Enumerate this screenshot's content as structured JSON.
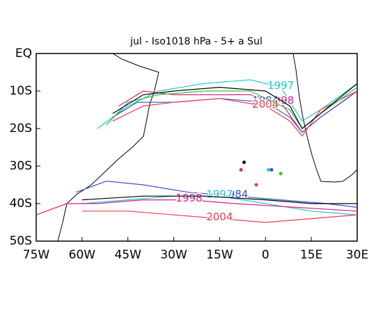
{
  "chart_data": {
    "type": "line",
    "title": "jul - Iso1018 hPa - 5+ a Sul",
    "xlim": [
      -75,
      30
    ],
    "ylim": [
      -50,
      0
    ],
    "xticks": [
      {
        "value": -75,
        "label": "75W"
      },
      {
        "value": -60,
        "label": "60W"
      },
      {
        "value": -45,
        "label": "45W"
      },
      {
        "value": -30,
        "label": "30W"
      },
      {
        "value": -15,
        "label": "15W"
      },
      0,
      {
        "value": 15,
        "label": "15E"
      },
      {
        "value": 30,
        "label": "30E"
      }
    ],
    "yticks": [
      {
        "value": 0,
        "label": "EQ"
      },
      {
        "value": -10,
        "label": "10S"
      },
      {
        "value": -20,
        "label": "20S"
      },
      {
        "value": -30,
        "label": "30S"
      },
      {
        "value": -40,
        "label": "40S"
      },
      {
        "value": -50,
        "label": "50S"
      }
    ],
    "series": [
      {
        "name": "1997",
        "color": "#19c8c8",
        "x": [
          -55,
          -45,
          -35,
          -20,
          -5,
          5,
          12,
          18,
          25,
          30
        ],
        "values": [
          -20,
          -14,
          -10,
          -8,
          -7,
          -9,
          -18,
          -15,
          -11,
          -8
        ]
      },
      {
        "name": "1998",
        "color": "#d81f8a",
        "x": [
          -48,
          -40,
          -30,
          -20,
          -5,
          5,
          12,
          18,
          25,
          30
        ],
        "values": [
          -14,
          -10,
          -11,
          -11,
          -11,
          -13,
          -21,
          -17,
          -13,
          -10
        ]
      },
      {
        "name": "1984",
        "color": "#3b4fd8",
        "x": [
          -50,
          -42,
          -30,
          -15,
          0,
          8,
          12,
          18,
          30
        ],
        "values": [
          -17,
          -13,
          -13,
          -12,
          -13,
          -17,
          -21,
          -17,
          -10
        ]
      },
      {
        "name": "2004",
        "color": "#f0384a",
        "x": [
          -50,
          -40,
          -30,
          -15,
          0,
          8,
          12,
          18,
          30
        ],
        "values": [
          -18,
          -14,
          -13,
          -12,
          -14,
          -18,
          -22,
          -15,
          -10
        ]
      },
      {
        "color": "#2cc82c",
        "x": [
          -52,
          -45,
          -35,
          -20,
          -5,
          8,
          12,
          18,
          30
        ],
        "values": [
          -19,
          -13,
          -11,
          -10,
          -10,
          -15,
          -20,
          -16,
          -9
        ]
      },
      {
        "color": "#000000",
        "x": [
          -50,
          -40,
          -30,
          -15,
          0,
          8,
          12,
          18,
          30
        ],
        "values": [
          -16,
          -11,
          -10,
          -9,
          -10,
          -14,
          -20,
          -16,
          -8
        ]
      },
      {
        "name": "1984",
        "color": "#3b4fd8",
        "x": [
          -62,
          -52,
          -40,
          -25,
          -10,
          5,
          20,
          30
        ],
        "values": [
          -37,
          -34,
          -35,
          -37,
          -38,
          -39,
          -40,
          -41
        ]
      },
      {
        "name": "1997",
        "color": "#19c8c8",
        "x": [
          -60,
          -45,
          -30,
          -15,
          0,
          15,
          30
        ],
        "values": [
          -40,
          -39,
          -38,
          -38,
          -40,
          -42,
          -43
        ]
      },
      {
        "name": "2004",
        "color": "#f0384a",
        "x": [
          -60,
          -45,
          -30,
          -15,
          0,
          15,
          30
        ],
        "values": [
          -42,
          -42,
          -43,
          -44,
          -45,
          -44,
          -43
        ]
      },
      {
        "name": "1998",
        "color": "#d81f8a",
        "x": [
          -75,
          -65,
          -55,
          -40,
          -25,
          -10,
          10,
          30
        ],
        "values": [
          -43,
          -40,
          -40,
          -39,
          -39,
          -40,
          -41,
          -42
        ]
      },
      {
        "color": "#000000",
        "x": [
          -60,
          -40,
          -20,
          0,
          15,
          30
        ],
        "values": [
          -39,
          -38,
          -38,
          -39,
          -40,
          -40
        ]
      }
    ],
    "points": [
      {
        "color": "#000000",
        "x": -7,
        "y": -29
      },
      {
        "color": "#d81f8a",
        "x": -8,
        "y": -31
      },
      {
        "color": "#f0384a",
        "x": -3,
        "y": -35
      },
      {
        "color": "#19c8c8",
        "x": 1,
        "y": -31
      },
      {
        "color": "#3b4fd8",
        "x": 2,
        "y": -31
      },
      {
        "color": "#2cc82c",
        "x": 5,
        "y": -32
      }
    ]
  }
}
